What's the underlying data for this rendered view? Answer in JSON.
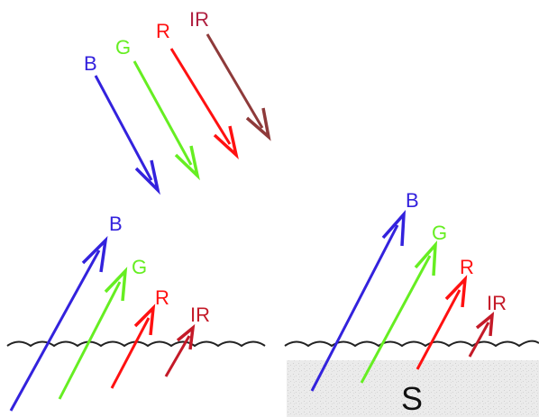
{
  "colors": {
    "blue": "#3322dd",
    "green": "#66ee22",
    "red": "#ff1111",
    "infrared": "#8e3a3a",
    "infrared_underwater": "#c41a28",
    "surface_line": "#222222",
    "sediment": "#e6e6e6"
  },
  "incident": {
    "blue_label": "B",
    "green_label": "G",
    "red_label": "R",
    "ir_label": "IR"
  },
  "deep_water": {
    "blue_label": "B",
    "green_label": "G",
    "red_label": "R",
    "ir_label": "IR"
  },
  "shallow_water": {
    "blue_label": "B",
    "green_label": "G",
    "red_label": "R",
    "ir_label": "IR",
    "sediment_label": "S"
  }
}
